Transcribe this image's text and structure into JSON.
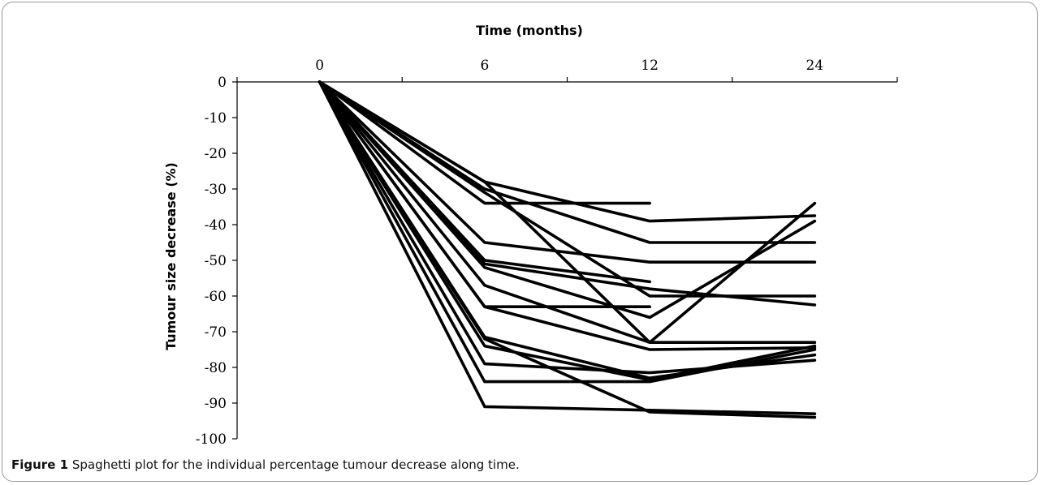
{
  "caption": {
    "label": "Figure 1",
    "text": "Spaghetti plot for the individual percentage tumour decrease along time."
  },
  "chart_data": {
    "type": "line",
    "xlabel": "Time (months)",
    "ylabel": "Tumour size decrease (%)",
    "x": [
      "0",
      "6",
      "12",
      "24"
    ],
    "ylim": [
      -100,
      0
    ],
    "yticks": [
      "0",
      "-10",
      "-20",
      "-30",
      "-40",
      "-50",
      "-60",
      "-70",
      "-80",
      "-90",
      "-100"
    ],
    "x_axis_position": "top",
    "grid": false,
    "legend": "none",
    "line_color": "#000000",
    "series": [
      {
        "values": [
          0,
          -28,
          -39,
          -37.5
        ]
      },
      {
        "values": [
          0,
          -30,
          -45,
          -45
        ]
      },
      {
        "values": [
          0,
          -34,
          -34,
          null
        ]
      },
      {
        "values": [
          0,
          -31,
          -60,
          -60
        ]
      },
      {
        "values": [
          0,
          -28,
          -73,
          -34
        ]
      },
      {
        "values": [
          0,
          -45,
          -50.5,
          -50.5
        ]
      },
      {
        "values": [
          0,
          -50,
          -56,
          null
        ]
      },
      {
        "values": [
          0,
          -51,
          -58,
          -62.5
        ]
      },
      {
        "values": [
          0,
          -52,
          -66,
          -39
        ]
      },
      {
        "values": [
          0,
          -57,
          -73,
          -73
        ]
      },
      {
        "values": [
          0,
          -63,
          -63,
          null
        ]
      },
      {
        "values": [
          0,
          -63,
          -75,
          -74.5
        ]
      },
      {
        "values": [
          0,
          -71.5,
          -83,
          -76.5
        ]
      },
      {
        "values": [
          0,
          -74,
          -83.5,
          -74
        ]
      },
      {
        "values": [
          0,
          -79,
          -81.5,
          -78
        ]
      },
      {
        "values": [
          0,
          -84,
          -84,
          -75
        ]
      },
      {
        "values": [
          0,
          -72,
          -92.5,
          -94
        ]
      },
      {
        "values": [
          0,
          -91,
          -92,
          -93
        ]
      }
    ]
  }
}
